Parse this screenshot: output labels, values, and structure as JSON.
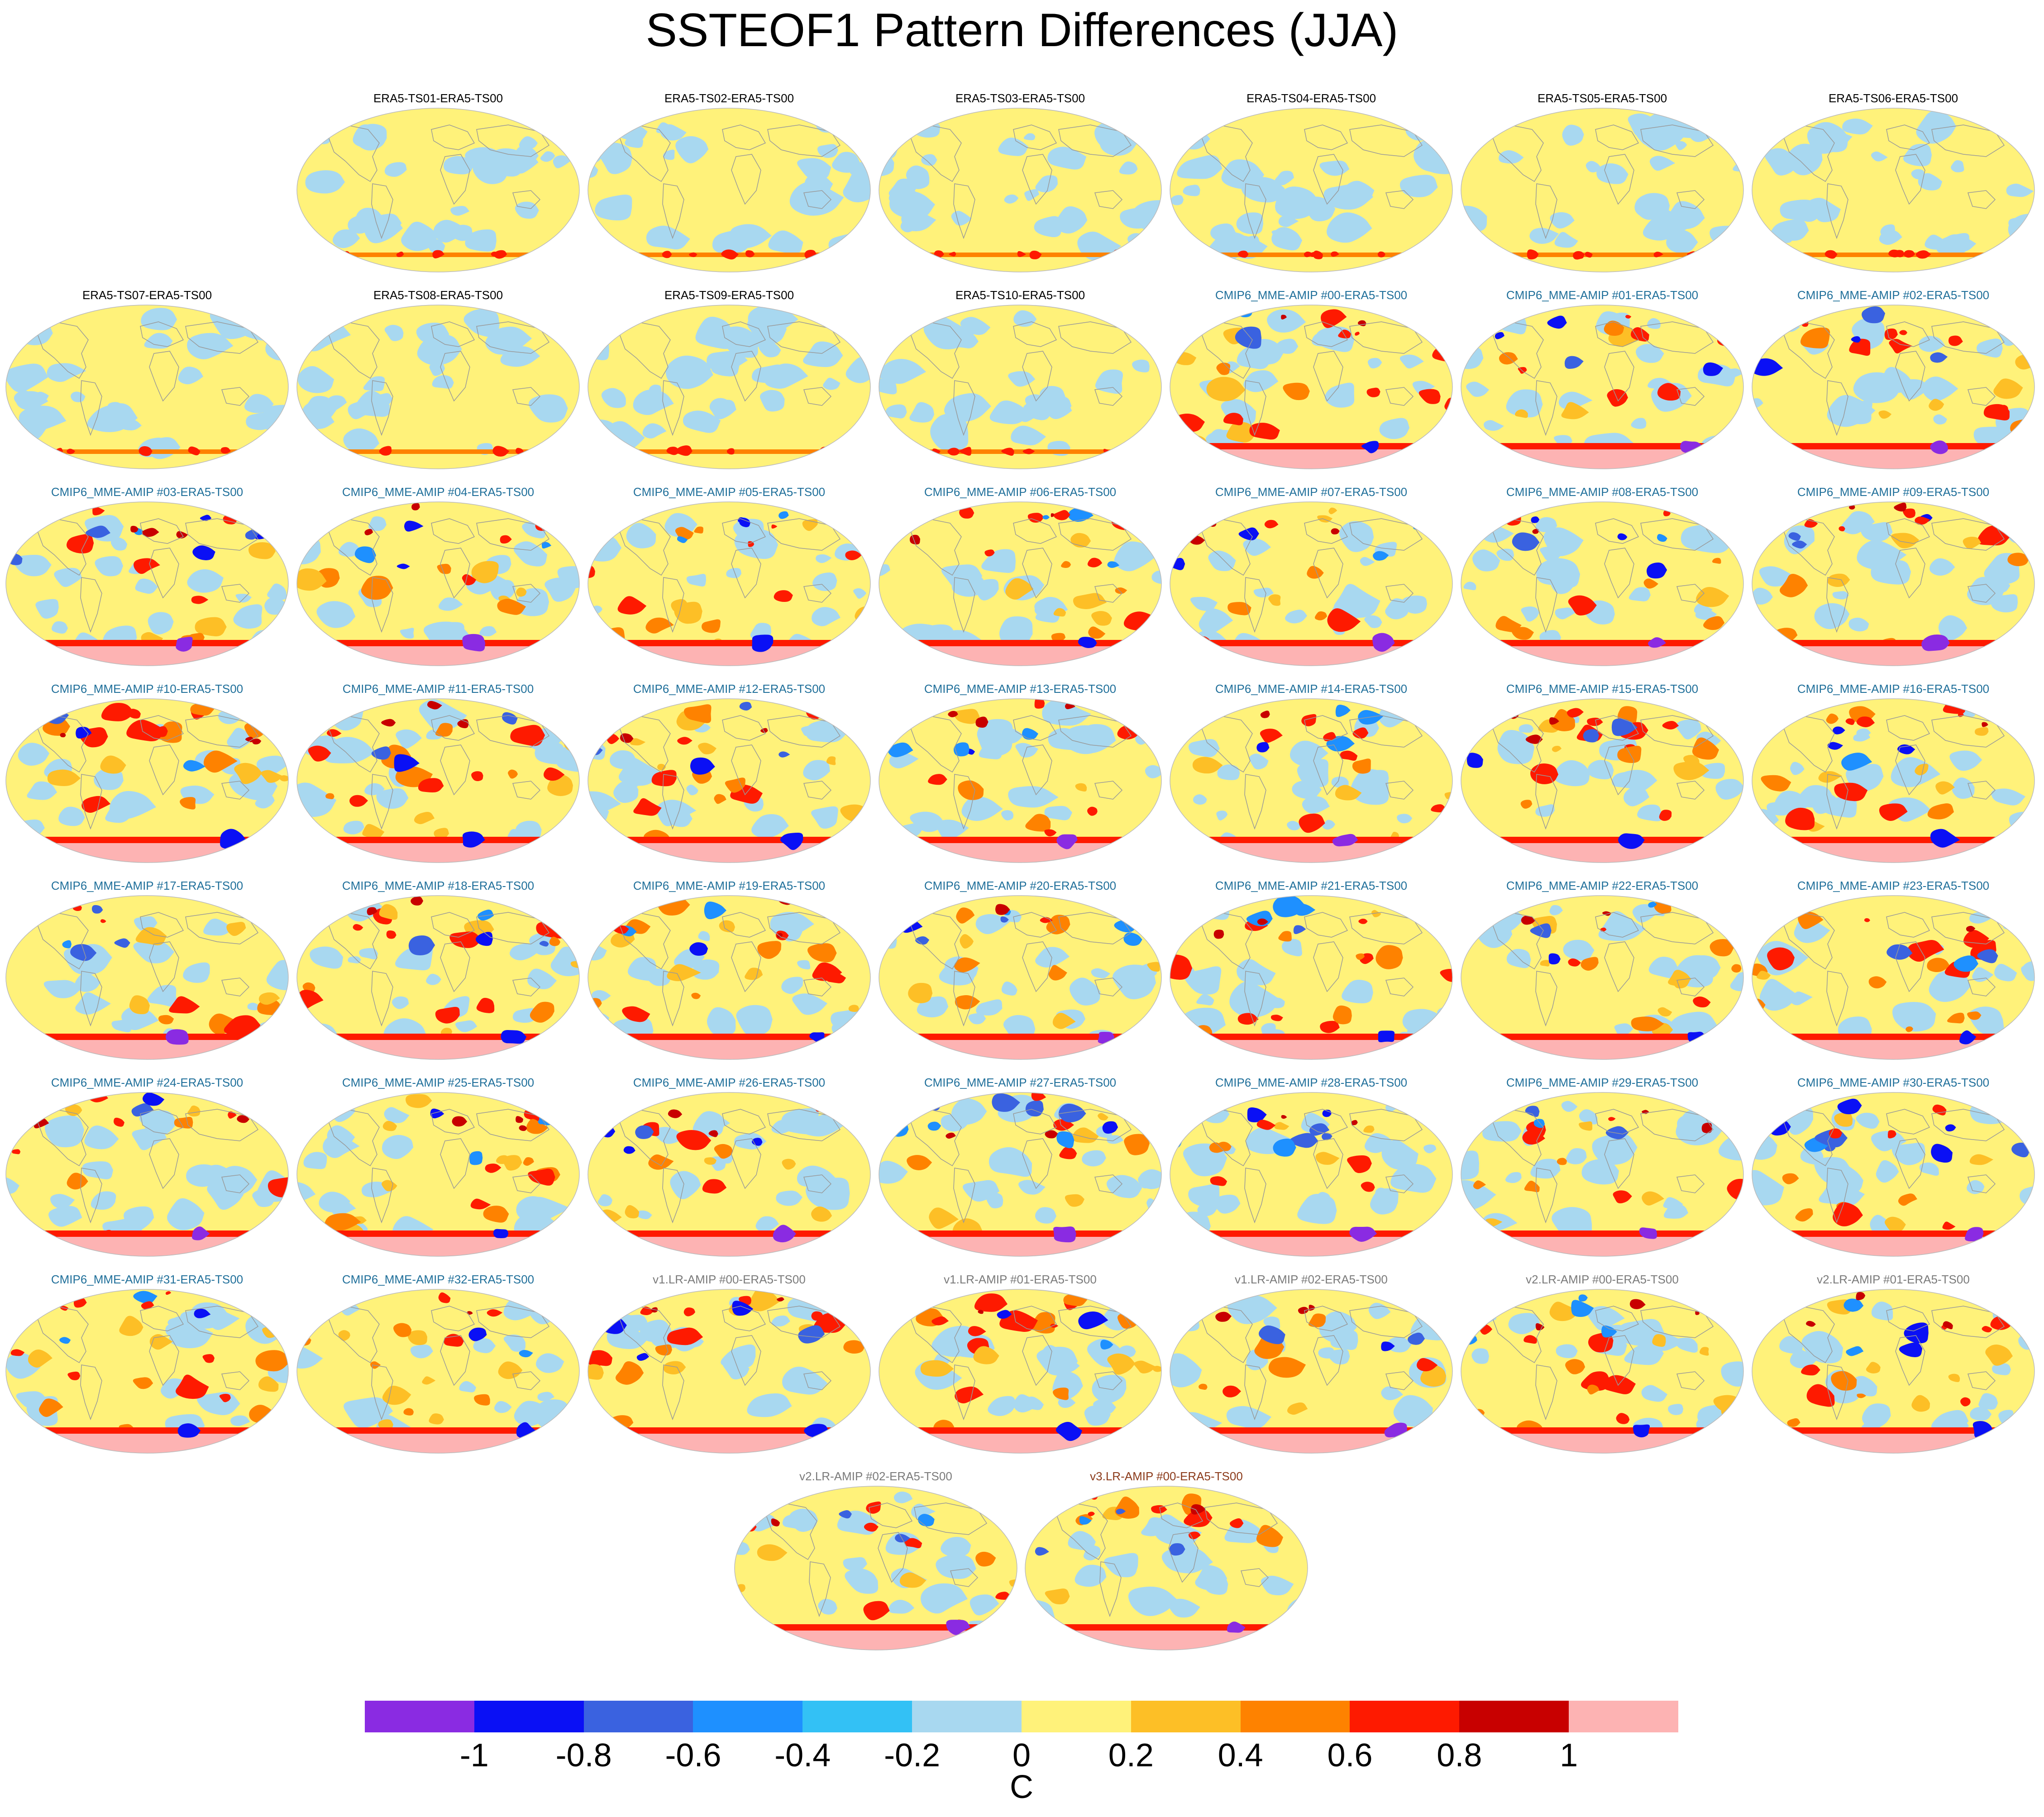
{
  "title": "SSTEOF1 Pattern Differences (JJA)",
  "colors": {
    "levels": [
      "#8a2be2",
      "#0a10f5",
      "#3a62e0",
      "#1e90ff",
      "#33c1f5",
      "#a8d8f0",
      "#fff27a",
      "#fdbf26",
      "#fe8200",
      "#fe1a00",
      "#c80000",
      "#fdb3b3"
    ],
    "coast": "#999999"
  },
  "colorbar": {
    "ticks": [
      "-1",
      "-0.8",
      "-0.6",
      "-0.4",
      "-0.2",
      "0",
      "0.2",
      "0.4",
      "0.6",
      "0.8",
      "1"
    ],
    "unit": "C"
  },
  "panels": [
    {
      "label": "ERA5-TS01-ERA5-TS00",
      "group": "era",
      "style": "era"
    },
    {
      "label": "ERA5-TS02-ERA5-TS00",
      "group": "era",
      "style": "era"
    },
    {
      "label": "ERA5-TS03-ERA5-TS00",
      "group": "era",
      "style": "era"
    },
    {
      "label": "ERA5-TS04-ERA5-TS00",
      "group": "era",
      "style": "era"
    },
    {
      "label": "ERA5-TS05-ERA5-TS00",
      "group": "era",
      "style": "era"
    },
    {
      "label": "ERA5-TS06-ERA5-TS00",
      "group": "era",
      "style": "era"
    },
    {
      "label": "ERA5-TS07-ERA5-TS00",
      "group": "era",
      "style": "era"
    },
    {
      "label": "ERA5-TS08-ERA5-TS00",
      "group": "era",
      "style": "era"
    },
    {
      "label": "ERA5-TS09-ERA5-TS00",
      "group": "era",
      "style": "era"
    },
    {
      "label": "ERA5-TS10-ERA5-TS00",
      "group": "era",
      "style": "era"
    },
    {
      "label": "CMIP6_MME-AMIP  #00-ERA5-TS00",
      "group": "cmip",
      "style": "warm"
    },
    {
      "label": "CMIP6_MME-AMIP  #01-ERA5-TS00",
      "group": "cmip",
      "style": "mixed"
    },
    {
      "label": "CMIP6_MME-AMIP  #02-ERA5-TS00",
      "group": "cmip",
      "style": "mixed"
    },
    {
      "label": "CMIP6_MME-AMIP  #03-ERA5-TS00",
      "group": "cmip",
      "style": "cool"
    },
    {
      "label": "CMIP6_MME-AMIP  #04-ERA5-TS00",
      "group": "cmip",
      "style": "mixed"
    },
    {
      "label": "CMIP6_MME-AMIP  #05-ERA5-TS00",
      "group": "cmip",
      "style": "warm"
    },
    {
      "label": "CMIP6_MME-AMIP  #06-ERA5-TS00",
      "group": "cmip",
      "style": "warm"
    },
    {
      "label": "CMIP6_MME-AMIP  #07-ERA5-TS00",
      "group": "cmip",
      "style": "mixed"
    },
    {
      "label": "CMIP6_MME-AMIP  #08-ERA5-TS00",
      "group": "cmip",
      "style": "cool"
    },
    {
      "label": "CMIP6_MME-AMIP  #09-ERA5-TS00",
      "group": "cmip",
      "style": "mixed"
    },
    {
      "label": "CMIP6_MME-AMIP  #10-ERA5-TS00",
      "group": "cmip",
      "style": "warm"
    },
    {
      "label": "CMIP6_MME-AMIP  #11-ERA5-TS00",
      "group": "cmip",
      "style": "warm"
    },
    {
      "label": "CMIP6_MME-AMIP  #12-ERA5-TS00",
      "group": "cmip",
      "style": "warm"
    },
    {
      "label": "CMIP6_MME-AMIP  #13-ERA5-TS00",
      "group": "cmip",
      "style": "mixed"
    },
    {
      "label": "CMIP6_MME-AMIP  #14-ERA5-TS00",
      "group": "cmip",
      "style": "mixed"
    },
    {
      "label": "CMIP6_MME-AMIP  #15-ERA5-TS00",
      "group": "cmip",
      "style": "warm"
    },
    {
      "label": "CMIP6_MME-AMIP  #16-ERA5-TS00",
      "group": "cmip",
      "style": "warm"
    },
    {
      "label": "CMIP6_MME-AMIP  #17-ERA5-TS00",
      "group": "cmip",
      "style": "mixed"
    },
    {
      "label": "CMIP6_MME-AMIP  #18-ERA5-TS00",
      "group": "cmip",
      "style": "warm"
    },
    {
      "label": "CMIP6_MME-AMIP  #19-ERA5-TS00",
      "group": "cmip",
      "style": "warm"
    },
    {
      "label": "CMIP6_MME-AMIP  #20-ERA5-TS00",
      "group": "cmip",
      "style": "cool"
    },
    {
      "label": "CMIP6_MME-AMIP  #21-ERA5-TS00",
      "group": "cmip",
      "style": "warm"
    },
    {
      "label": "CMIP6_MME-AMIP  #22-ERA5-TS00",
      "group": "cmip",
      "style": "warm"
    },
    {
      "label": "CMIP6_MME-AMIP  #23-ERA5-TS00",
      "group": "cmip",
      "style": "warm"
    },
    {
      "label": "CMIP6_MME-AMIP  #24-ERA5-TS00",
      "group": "cmip",
      "style": "mixed"
    },
    {
      "label": "CMIP6_MME-AMIP  #25-ERA5-TS00",
      "group": "cmip",
      "style": "warm"
    },
    {
      "label": "CMIP6_MME-AMIP  #26-ERA5-TS00",
      "group": "cmip",
      "style": "mixed"
    },
    {
      "label": "CMIP6_MME-AMIP  #27-ERA5-TS00",
      "group": "cmip",
      "style": "cool"
    },
    {
      "label": "CMIP6_MME-AMIP  #28-ERA5-TS00",
      "group": "cmip",
      "style": "cool"
    },
    {
      "label": "CMIP6_MME-AMIP  #29-ERA5-TS00",
      "group": "cmip",
      "style": "mixed"
    },
    {
      "label": "CMIP6_MME-AMIP  #30-ERA5-TS00",
      "group": "cmip",
      "style": "cool"
    },
    {
      "label": "CMIP6_MME-AMIP  #31-ERA5-TS00",
      "group": "cmip",
      "style": "warm"
    },
    {
      "label": "CMIP6_MME-AMIP  #32-ERA5-TS00",
      "group": "cmip",
      "style": "warm"
    },
    {
      "label": "v1.LR-AMIP  #00-ERA5-TS00",
      "group": "v1",
      "style": "warm"
    },
    {
      "label": "v1.LR-AMIP  #01-ERA5-TS00",
      "group": "v1",
      "style": "warm"
    },
    {
      "label": "v1.LR-AMIP  #02-ERA5-TS00",
      "group": "v1",
      "style": "mixed"
    },
    {
      "label": "v2.LR-AMIP  #00-ERA5-TS00",
      "group": "v2",
      "style": "warm"
    },
    {
      "label": "v2.LR-AMIP  #01-ERA5-TS00",
      "group": "v2",
      "style": "warm"
    },
    {
      "label": "v2.LR-AMIP  #02-ERA5-TS00",
      "group": "v2",
      "style": "mixed"
    },
    {
      "label": "v3.LR-AMIP  #00-ERA5-TS00",
      "group": "v3",
      "style": "mixed"
    }
  ]
}
